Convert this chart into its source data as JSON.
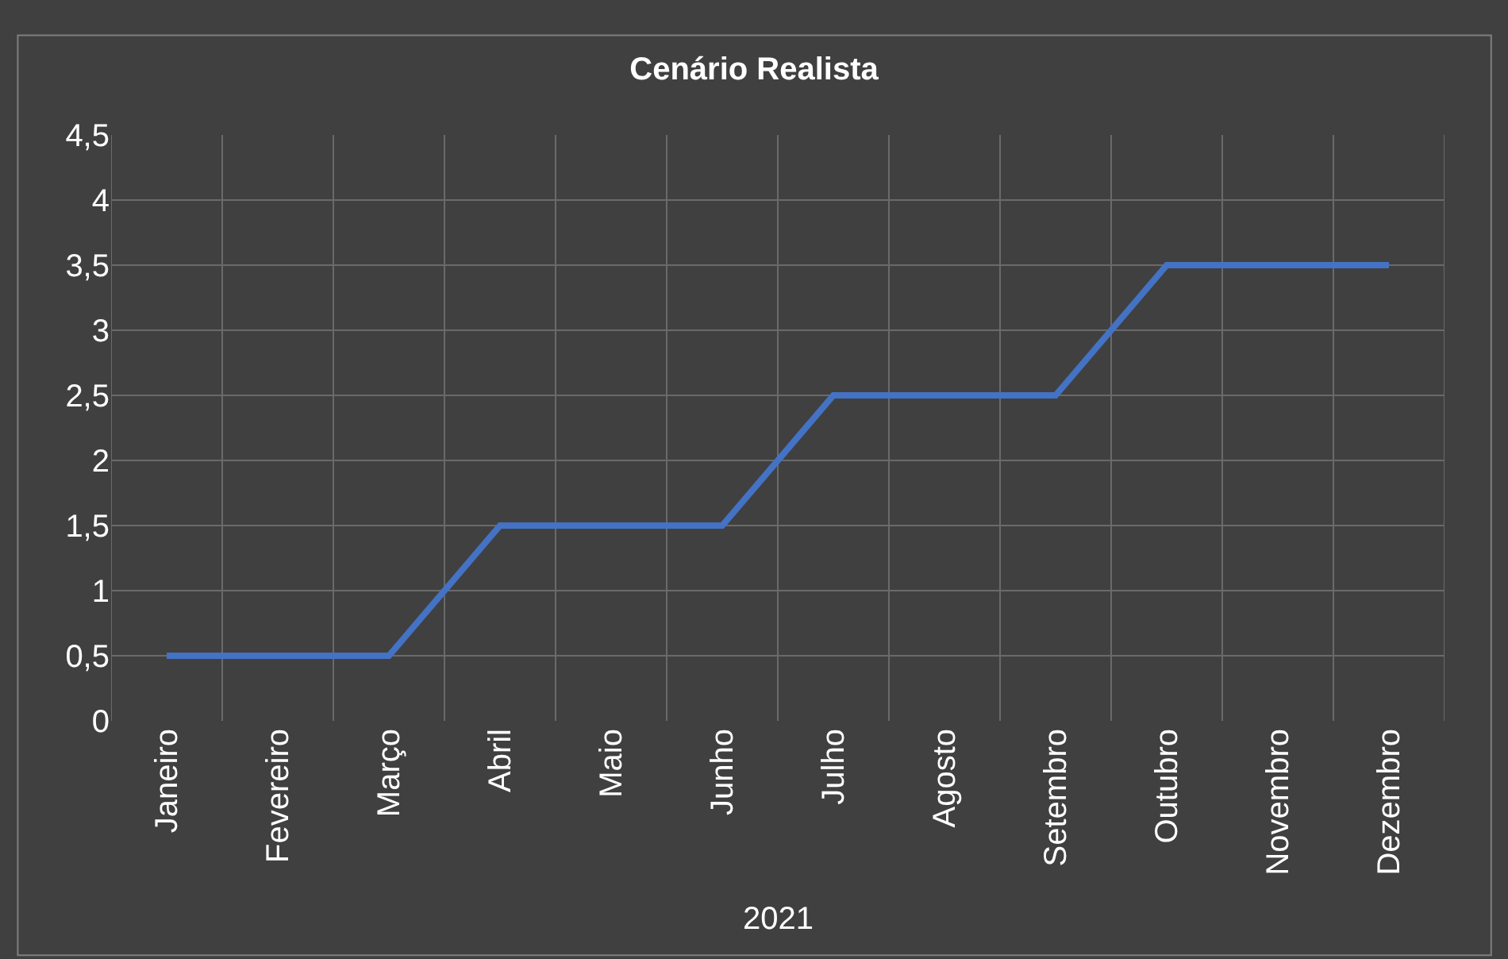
{
  "chart_data": {
    "type": "line",
    "title": "Cenário Realista",
    "xlabel": "2021",
    "categories": [
      "Janeiro",
      "Fevereiro",
      "Março",
      "Abril",
      "Maio",
      "Junho",
      "Julho",
      "Agosto",
      "Setembro",
      "Outubro",
      "Novembro",
      "Dezembro"
    ],
    "series": [
      {
        "color": "#4472c4",
        "values": [
          0.5,
          0.5,
          0.5,
          1.5,
          1.5,
          1.5,
          2.5,
          2.5,
          2.5,
          3.5,
          3.5,
          3.5
        ]
      }
    ],
    "ylim": [
      0,
      4.5
    ],
    "yticks": [
      0,
      {
        "value": 0.5,
        "label": "0,5"
      },
      1,
      {
        "value": 1.5,
        "label": "1,5"
      },
      2,
      {
        "value": 2.5,
        "label": "2,5"
      },
      3,
      {
        "value": 3.5,
        "label": "3,5"
      },
      4,
      {
        "value": 4.5,
        "label": "4,5"
      }
    ],
    "grid": true,
    "marker": "none",
    "line_style": "solid"
  }
}
